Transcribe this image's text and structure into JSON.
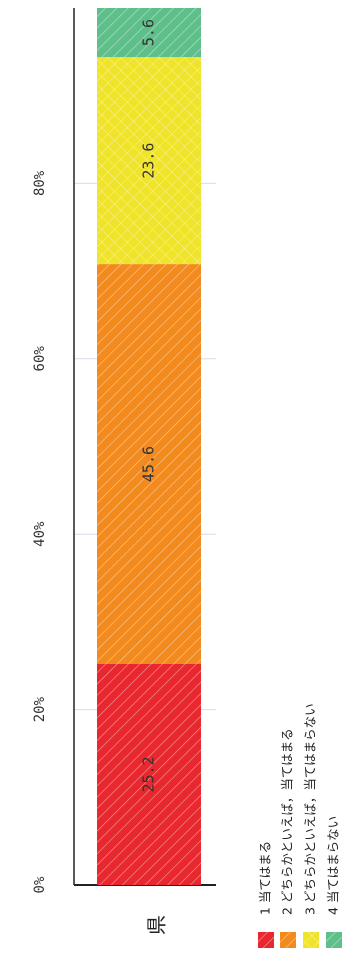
{
  "chart_data": {
    "type": "bar",
    "orientation": "horizontal-stacked-100",
    "title": "",
    "xlabel": "",
    "ylabel": "",
    "categories": [
      "県"
    ],
    "xlim": [
      0,
      100
    ],
    "ticks": [
      "0%",
      "20%",
      "40%",
      "60%",
      "80%"
    ],
    "grid": true,
    "series": [
      {
        "name": "1 当てはまる",
        "values": [
          25.2
        ],
        "label": "25.2",
        "color": "#e8282e"
      },
      {
        "name": "2 どちらかといえば，当てはまる",
        "values": [
          45.6
        ],
        "label": "45.6",
        "color": "#f28a1e"
      },
      {
        "name": "3 どちらかといえば，当てはまらない",
        "values": [
          23.6
        ],
        "label": "23.6",
        "color": "#f0e42a"
      },
      {
        "name": "4 当てはまらない",
        "values": [
          5.6
        ],
        "label": "5.6",
        "color": "#5fbf8a"
      }
    ],
    "legend_position": "bottom"
  }
}
